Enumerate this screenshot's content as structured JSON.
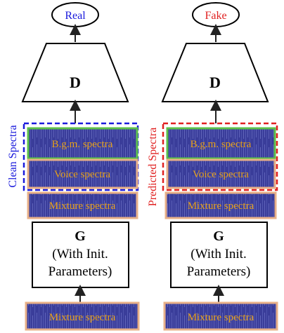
{
  "left": {
    "output_label": "Real",
    "side_label": "Clean Spectra",
    "output_color": "#1a1adc",
    "side_color": "#1a1adc",
    "dashed_box_color": "#1a1adc"
  },
  "right": {
    "output_label": "Fake",
    "side_label": "Predicted Spectra",
    "output_color": "#e02020",
    "side_color": "#e02020",
    "dashed_box_color": "#e02020"
  },
  "discriminator_label": "D",
  "generator": {
    "label": "G",
    "sub_label_line1": "(With Init.",
    "sub_label_line2": "Parameters)"
  },
  "spectra": {
    "bgm": "B.g.m. spectra",
    "voice": "Voice spectra",
    "mixture": "Mixture spectra"
  },
  "colors": {
    "spectrogram_bg": "#3a3d9a",
    "spectrogram_text": "#e6a01a",
    "bgm_border": "#5cc04a",
    "voice_border": "#e8b088",
    "mixture_border": "#e8b088"
  }
}
